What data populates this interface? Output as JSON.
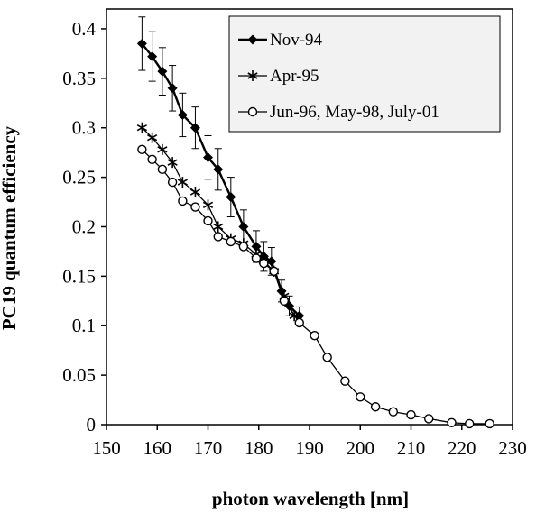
{
  "chart_data": {
    "type": "line",
    "xlabel": "photon wavelength [nm]",
    "ylabel": "PC19 quantum efficiency",
    "xlim": [
      150,
      230
    ],
    "ylim": [
      0,
      0.42
    ],
    "xticks": [
      150,
      160,
      170,
      180,
      190,
      200,
      210,
      220,
      230
    ],
    "xtick_labels": [
      "150",
      "160",
      "170",
      "180",
      "190",
      "200",
      "210",
      "220",
      "230"
    ],
    "yticks": [
      0,
      0.05,
      0.1,
      0.15,
      0.2,
      0.25,
      0.3,
      0.35,
      0.4
    ],
    "ytick_labels": [
      "0",
      "0.05",
      "0.1",
      "0.15",
      "0.2",
      "0.25",
      "0.3",
      "0.35",
      "0.4"
    ],
    "grid": false,
    "legend_position": "top-right",
    "series": [
      {
        "name": "Nov-94",
        "marker": "diamond",
        "x": [
          157,
          159,
          161,
          163,
          165,
          167.5,
          170,
          172,
          174.5,
          177,
          179.5,
          181,
          182.5,
          184.5,
          186,
          188
        ],
        "y": [
          0.385,
          0.372,
          0.357,
          0.34,
          0.313,
          0.3,
          0.27,
          0.258,
          0.23,
          0.2,
          0.18,
          0.17,
          0.165,
          0.135,
          0.12,
          0.11
        ],
        "errors": [
          0.027,
          0.025,
          0.024,
          0.023,
          0.022,
          0.021,
          0.022,
          0.021,
          0.02,
          0.017,
          0.016,
          0.015,
          0.014,
          0.011,
          0.01,
          0.009
        ]
      },
      {
        "name": "Apr-95",
        "marker": "star",
        "x": [
          157,
          159,
          161,
          163,
          165,
          167.5,
          170,
          172,
          174.5,
          177,
          179.5,
          181,
          183,
          185,
          187
        ],
        "y": [
          0.3,
          0.29,
          0.278,
          0.265,
          0.245,
          0.235,
          0.222,
          0.2,
          0.188,
          0.183,
          0.172,
          0.165,
          0.155,
          0.13,
          0.11
        ],
        "errors": []
      },
      {
        "name": "Jun-96, May-98, July-01",
        "marker": "circle",
        "x": [
          157,
          159,
          161,
          163,
          165,
          167.5,
          170,
          172,
          174.5,
          177,
          179.5,
          181,
          183,
          185,
          188,
          191,
          193.5,
          197,
          200,
          203,
          206.5,
          210,
          213.5,
          218,
          221.5,
          225.5
        ],
        "y": [
          0.278,
          0.268,
          0.258,
          0.245,
          0.226,
          0.22,
          0.206,
          0.19,
          0.185,
          0.18,
          0.168,
          0.163,
          0.155,
          0.125,
          0.103,
          0.09,
          0.068,
          0.044,
          0.028,
          0.018,
          0.013,
          0.01,
          0.006,
          0.002,
          0.001,
          0.001
        ],
        "errors": []
      }
    ]
  }
}
